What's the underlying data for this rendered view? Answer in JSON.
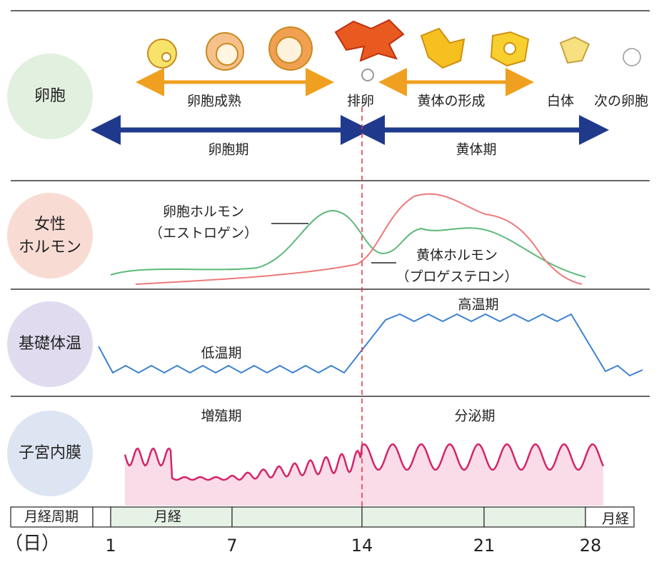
{
  "rows": {
    "follicle": "卵胞",
    "hormone": [
      "女性",
      "ホルモン"
    ],
    "temperature": "基礎体温",
    "endometrium": "子宮内膜"
  },
  "follicle": {
    "maturation": "卵胞成熟",
    "ovulation": "排卵",
    "corpus_luteum_formation": "黄体の形成",
    "corpus_albicans": "白体",
    "next_follicle": "次の卵胞",
    "follicular_phase": "卵胞期",
    "luteal_phase": "黄体期"
  },
  "hormone": {
    "estrogen": [
      "卵胞ホルモン",
      "（エストロゲン）"
    ],
    "progesterone": [
      "黄体ホルモン",
      "（プロゲステロン）"
    ]
  },
  "temperature": {
    "low": "低温期",
    "high": "高温期"
  },
  "endometrium": {
    "proliferative": "増殖期",
    "secretory": "分泌期"
  },
  "timeline": {
    "cycle_label": "月経周期",
    "menses": [
      "月経",
      "月経"
    ],
    "unit": "（日）",
    "days": [
      1,
      7,
      14,
      21,
      28
    ]
  }
}
